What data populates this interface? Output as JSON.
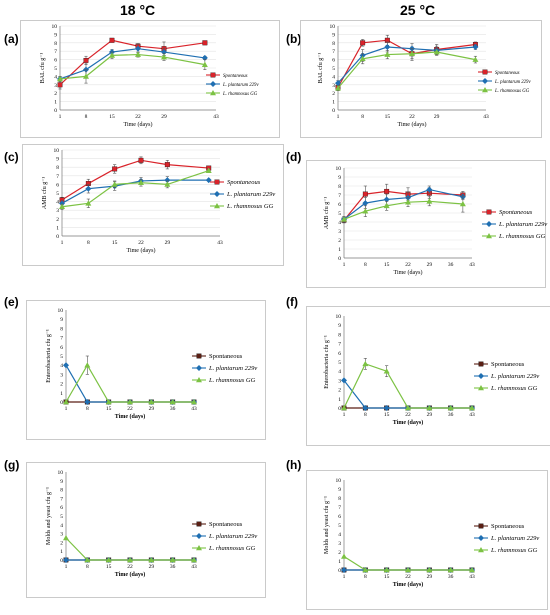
{
  "headers": [
    "18 °C",
    "25 °C"
  ],
  "colors": {
    "spontaneous_line": "#d9232a",
    "plantarum": "#1f6fb2",
    "rhamnosus": "#7cc243",
    "spontaneous_bottom": "#5a1f14"
  },
  "chart_data": [
    {
      "panel": "(a)",
      "type": "line",
      "xlabel": "Time (days)",
      "ylabel": "BAL cfu g⁻¹",
      "xticks": [
        1,
        8,
        15,
        22,
        29,
        43
      ],
      "ylim": [
        0,
        10
      ],
      "yticks": [
        0,
        1,
        2,
        3,
        4,
        5,
        6,
        7,
        8,
        9,
        10
      ],
      "legend_position": "right",
      "series": [
        {
          "name": "Spontaneous",
          "x": [
            1,
            8,
            15,
            22,
            29,
            40
          ],
          "values": [
            3.0,
            5.9,
            8.3,
            7.6,
            7.3,
            8.0
          ],
          "err": [
            0.5,
            0.5,
            0.1,
            0.3,
            0.8,
            0.1
          ]
        },
        {
          "name": "L. plantarum 229v",
          "x": [
            1,
            8,
            15,
            22,
            29,
            40
          ],
          "values": [
            3.7,
            4.8,
            6.9,
            7.3,
            6.9,
            6.2
          ],
          "err": [
            0.3,
            0.8,
            0.3,
            0.5,
            0.4,
            0.2
          ]
        },
        {
          "name": "L. rhamnosus GG",
          "x": [
            1,
            8,
            15,
            22,
            29,
            40
          ],
          "values": [
            3.7,
            4.0,
            6.5,
            6.6,
            6.3,
            5.4
          ],
          "err": [
            0.3,
            0.8,
            0.4,
            0.3,
            0.4,
            0.6
          ]
        }
      ]
    },
    {
      "panel": "(b)",
      "type": "line",
      "xlabel": "Time (days)",
      "ylabel": "BAL cfu g⁻¹",
      "xticks": [
        1,
        8,
        15,
        22,
        29,
        43
      ],
      "ylim": [
        0,
        10
      ],
      "yticks": [
        0,
        1,
        2,
        3,
        4,
        5,
        6,
        7,
        8,
        9,
        10
      ],
      "legend_position": "right",
      "series": [
        {
          "name": "Spontaneous",
          "x": [
            1,
            8,
            15,
            22,
            29,
            40
          ],
          "values": [
            2.7,
            8.0,
            8.3,
            6.7,
            7.2,
            7.8
          ],
          "err": [
            0.4,
            0.4,
            0.6,
            0.8,
            0.6,
            0.3
          ]
        },
        {
          "name": "L. plantarum 229v",
          "x": [
            1,
            8,
            15,
            22,
            29,
            40
          ],
          "values": [
            3.2,
            6.5,
            7.5,
            7.3,
            7.1,
            7.5
          ],
          "err": [
            0.3,
            0.7,
            0.6,
            0.6,
            0.5,
            0.3
          ]
        },
        {
          "name": "L. rhamnosus GG",
          "x": [
            1,
            8,
            15,
            22,
            29,
            40
          ],
          "values": [
            2.6,
            6.1,
            6.6,
            6.7,
            6.9,
            6.0
          ],
          "err": [
            0.3,
            0.6,
            0.5,
            0.6,
            0.4,
            0.4
          ]
        }
      ]
    },
    {
      "panel": "(c)",
      "type": "line",
      "xlabel": "Time (days)",
      "ylabel": "AMB cfu g⁻¹",
      "xticks": [
        1,
        8,
        15,
        22,
        29,
        43
      ],
      "ylim": [
        0,
        10
      ],
      "yticks": [
        0,
        1,
        2,
        3,
        4,
        5,
        6,
        7,
        8,
        9,
        10
      ],
      "legend_position": "right",
      "series": [
        {
          "name": "Spontaneous",
          "x": [
            1,
            8,
            15,
            22,
            29,
            40
          ],
          "values": [
            4.2,
            6.1,
            7.8,
            8.8,
            8.3,
            7.9
          ],
          "err": [
            0.3,
            0.5,
            0.5,
            0.4,
            0.5,
            0.2
          ]
        },
        {
          "name": "L. plantarum 229v",
          "x": [
            1,
            8,
            15,
            22,
            29,
            40
          ],
          "values": [
            3.8,
            5.5,
            5.8,
            6.4,
            6.5,
            6.5
          ],
          "err": [
            0.3,
            0.5,
            0.5,
            0.4,
            0.4,
            0.1
          ]
        },
        {
          "name": "L. rhamnosus GG",
          "x": [
            1,
            8,
            15,
            22,
            29,
            40
          ],
          "values": [
            3.4,
            3.8,
            6.0,
            6.2,
            6.0,
            7.6
          ],
          "err": [
            0.3,
            0.5,
            0.4,
            0.4,
            0.4,
            0.2
          ]
        }
      ]
    },
    {
      "panel": "(d)",
      "type": "line",
      "xlabel": "Time (days)",
      "ylabel": "AMB cfu g⁻¹",
      "xticks": [
        1,
        8,
        15,
        22,
        29,
        36,
        43
      ],
      "ylim": [
        0,
        10
      ],
      "yticks": [
        0,
        1,
        2,
        3,
        4,
        5,
        6,
        7,
        8,
        9,
        10
      ],
      "legend_position": "right",
      "series": [
        {
          "name": "Spontaneous",
          "x": [
            1,
            8,
            15,
            22,
            29,
            40
          ],
          "values": [
            4.2,
            7.1,
            7.4,
            7.1,
            7.2,
            7.0
          ],
          "err": [
            0.3,
            0.9,
            0.8,
            0.7,
            0.6,
            0.4
          ]
        },
        {
          "name": "L. plantarum 229v",
          "x": [
            1,
            8,
            15,
            22,
            29,
            40
          ],
          "values": [
            4.3,
            6.1,
            6.5,
            6.7,
            7.6,
            6.8
          ],
          "err": [
            0.3,
            0.6,
            0.6,
            0.6,
            0.4,
            0.3
          ]
        },
        {
          "name": "L. rhamnosus GG",
          "x": [
            1,
            8,
            15,
            22,
            29,
            40
          ],
          "values": [
            4.3,
            5.2,
            5.8,
            6.2,
            6.3,
            6.0
          ],
          "err": [
            0.3,
            0.6,
            0.5,
            0.5,
            0.5,
            0.9
          ]
        }
      ]
    },
    {
      "panel": "(e)",
      "type": "line",
      "xlabel": "Time (days)",
      "ylabel": "Enterobacteria cfu g⁻¹",
      "xticks": [
        1,
        8,
        15,
        22,
        29,
        36,
        43
      ],
      "ylim": [
        0,
        10
      ],
      "yticks": [
        0,
        1,
        2,
        3,
        4,
        5,
        6,
        7,
        8,
        9,
        10
      ],
      "legend_position": "right",
      "series": [
        {
          "name": "Spontaneous",
          "x": [
            1,
            8,
            15,
            22,
            29,
            36,
            43
          ],
          "values": [
            0,
            0,
            0,
            0,
            0,
            0,
            0
          ],
          "err": [
            0,
            0,
            0,
            0,
            0,
            0,
            0
          ]
        },
        {
          "name": "L. plantarum 229v",
          "x": [
            1,
            8,
            15,
            22,
            29,
            36,
            43
          ],
          "values": [
            4.0,
            0,
            0,
            0,
            0,
            0,
            0
          ],
          "err": [
            0,
            0,
            0,
            0,
            0,
            0,
            0
          ]
        },
        {
          "name": "L. rhamnosus GG",
          "x": [
            1,
            8,
            15,
            22,
            29,
            36,
            43
          ],
          "values": [
            0,
            4.0,
            0,
            0,
            0,
            0,
            0
          ],
          "err": [
            0,
            1.0,
            0,
            0,
            0,
            0,
            0
          ]
        }
      ]
    },
    {
      "panel": "(f)",
      "type": "line",
      "xlabel": "Time (days)",
      "ylabel": "Enterobacteria cfu g⁻¹",
      "xticks": [
        1,
        8,
        15,
        22,
        29,
        36,
        43
      ],
      "ylim": [
        0,
        10
      ],
      "yticks": [
        0,
        1,
        2,
        3,
        4,
        5,
        6,
        7,
        8,
        9,
        10
      ],
      "legend_position": "right",
      "series": [
        {
          "name": "Spontaneous",
          "x": [
            1,
            8,
            15,
            22,
            29,
            36,
            43
          ],
          "values": [
            0,
            0,
            0,
            0,
            0,
            0,
            0
          ],
          "err": [
            0,
            0,
            0,
            0,
            0,
            0,
            0
          ]
        },
        {
          "name": "L. plantarum 229v",
          "x": [
            1,
            8,
            15,
            22,
            29,
            36,
            43
          ],
          "values": [
            3.0,
            0,
            0,
            0,
            0,
            0,
            0
          ],
          "err": [
            0,
            0,
            0,
            0,
            0,
            0,
            0
          ]
        },
        {
          "name": "L. rhamnosus GG",
          "x": [
            1,
            8,
            15,
            22,
            29,
            36,
            43
          ],
          "values": [
            0,
            4.8,
            4.0,
            0,
            0,
            0,
            0
          ],
          "err": [
            0,
            0.6,
            0.6,
            0,
            0,
            0,
            0
          ]
        }
      ]
    },
    {
      "panel": "(g)",
      "type": "line",
      "xlabel": "Time (days)",
      "ylabel": "Molds and yeast cfu g⁻¹",
      "xticks": [
        1,
        8,
        15,
        22,
        29,
        36,
        43
      ],
      "ylim": [
        0,
        10
      ],
      "yticks": [
        0,
        1,
        2,
        3,
        4,
        5,
        6,
        7,
        8,
        9,
        10
      ],
      "legend_position": "right",
      "series": [
        {
          "name": "Spontaneous",
          "x": [
            1,
            8,
            15,
            22,
            29,
            36,
            43
          ],
          "values": [
            0,
            0,
            0,
            0,
            0,
            0,
            0
          ],
          "err": [
            0,
            0,
            0,
            0,
            0,
            0,
            0
          ]
        },
        {
          "name": "L. plantarum 229v",
          "x": [
            1,
            8,
            15,
            22,
            29,
            36,
            43
          ],
          "values": [
            0,
            0,
            0,
            0,
            0,
            0,
            0
          ],
          "err": [
            0,
            0,
            0,
            0,
            0,
            0,
            0
          ]
        },
        {
          "name": "L. rhamnosus GG",
          "x": [
            1,
            8,
            15,
            22,
            29,
            36,
            43
          ],
          "values": [
            2.5,
            0,
            0,
            0,
            0,
            0,
            0
          ],
          "err": [
            0,
            0,
            0,
            0,
            0,
            0,
            0
          ]
        }
      ]
    },
    {
      "panel": "(h)",
      "type": "line",
      "xlabel": "Time (days)",
      "ylabel": "Molds and yeast cfu g⁻¹",
      "xticks": [
        1,
        8,
        15,
        22,
        29,
        36,
        43
      ],
      "ylim": [
        0,
        10
      ],
      "yticks": [
        0,
        1,
        2,
        3,
        4,
        5,
        6,
        7,
        8,
        9,
        10
      ],
      "legend_position": "right",
      "series": [
        {
          "name": "Spontaneous",
          "x": [
            1,
            8,
            15,
            22,
            29,
            36,
            43
          ],
          "values": [
            0,
            0,
            0,
            0,
            0,
            0,
            0
          ],
          "err": [
            0,
            0,
            0,
            0,
            0,
            0,
            0
          ]
        },
        {
          "name": "L. plantarum 229v",
          "x": [
            1,
            8,
            15,
            22,
            29,
            36,
            43
          ],
          "values": [
            0,
            0,
            0,
            0,
            0,
            0,
            0
          ],
          "err": [
            0,
            0,
            0,
            0,
            0,
            0,
            0
          ]
        },
        {
          "name": "L. rhamnosus GG",
          "x": [
            1,
            8,
            15,
            22,
            29,
            36,
            43
          ],
          "values": [
            1.5,
            0,
            0,
            0,
            0,
            0,
            0
          ],
          "err": [
            0,
            0,
            0,
            0,
            0,
            0,
            0
          ]
        }
      ]
    }
  ]
}
